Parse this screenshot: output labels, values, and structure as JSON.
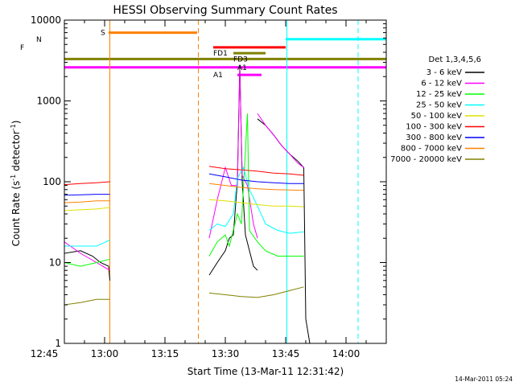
{
  "chart_data": {
    "type": "line",
    "title": "HESSI Observing Summary Count Rates",
    "xlabel": "Start Time (13-Mar-11 12:31:42)",
    "ylabel_main": "Count Rate (s",
    "ylabel_sup1": "-1",
    "ylabel_mid": " detector",
    "ylabel_sup2": "-1",
    "ylabel_end": ")",
    "yscale": "log",
    "ylim": [
      1,
      10000
    ],
    "xlim_minutes": [
      -10,
      70
    ],
    "x_tick_labels": [
      "12:45",
      "13:00",
      "13:15",
      "13:30",
      "13:45",
      "14:00"
    ],
    "x_tick_minutes": [
      -15,
      0,
      15,
      30,
      45,
      60
    ],
    "y_tick_labels": [
      "1",
      "10",
      "100",
      "1000",
      "10000"
    ],
    "y_tick_values": [
      1,
      10,
      100,
      1000,
      10000
    ],
    "timestamp": "14-Mar-2011 05:24",
    "legend": {
      "header": "Det 1,3,4,5,6",
      "position": "right",
      "entries": [
        {
          "label": "3 - 6 keV",
          "color": "#000000"
        },
        {
          "label": "6 - 12 keV",
          "color": "#ff00ff"
        },
        {
          "label": "12 - 25 keV",
          "color": "#00ff00"
        },
        {
          "label": "25 - 50 keV",
          "color": "#00ffff"
        },
        {
          "label": "50 - 100 keV",
          "color": "#e0e000"
        },
        {
          "label": "100 - 300 keV",
          "color": "#ff0000"
        },
        {
          "label": "300 - 800 keV",
          "color": "#0000ff"
        },
        {
          "label": "800 - 7000 keV",
          "color": "#ff8000"
        },
        {
          "label": "7000 - 20000 keV",
          "color": "#808000"
        }
      ]
    },
    "flag_bars": [
      {
        "label": "N",
        "color": "#00ffff",
        "y": 5800,
        "segments": [
          [
            -10,
            -18
          ],
          [
            45,
            70
          ]
        ],
        "label_x": -17
      },
      {
        "label": "S",
        "color": "#ff8000",
        "y": 7000,
        "segments": [
          [
            1,
            23
          ]
        ],
        "label_x": -1
      },
      {
        "label": "F",
        "color": "#ff0000",
        "y": 4600,
        "segments": [
          [
            -18,
            -13
          ],
          [
            27,
            45
          ]
        ],
        "label_x": -21
      },
      {
        "label": "FD1",
        "color": "#808000",
        "y": 3900,
        "segments": [
          [
            32,
            40
          ]
        ],
        "label_x": 27
      },
      {
        "label": "FD3",
        "color": "#808000",
        "y": 3300,
        "segments": [
          [
            -30,
            95
          ]
        ],
        "label_x": 32
      },
      {
        "label": "A1",
        "color": "#ff00ff",
        "y": 2600,
        "segments": [
          [
            -30,
            95
          ]
        ],
        "label_x": 33
      },
      {
        "label": "A1",
        "color": "#ff00ff",
        "y": 2100,
        "segments": [
          [
            33,
            39
          ]
        ],
        "label_x": 27
      }
    ],
    "vlines": [
      {
        "minute": -10.0,
        "color": "#00ffff",
        "style": "solid"
      },
      {
        "minute": -18.0,
        "color": "#00ffff",
        "style": "dashed"
      },
      {
        "minute": 1.3,
        "color": "#ff8000",
        "style": "solid"
      },
      {
        "minute": 23.3,
        "color": "#ff8000",
        "style": "dashed"
      },
      {
        "minute": 45.3,
        "color": "#00ffff",
        "style": "solid"
      },
      {
        "minute": 63.0,
        "color": "#00ffff",
        "style": "dashed"
      }
    ],
    "series": [
      {
        "name": "3 - 6 keV",
        "color": "#000000",
        "segments": [
          [
            [
              -21,
              4
            ],
            [
              -17,
              5
            ],
            [
              -15,
              6
            ],
            [
              -13,
              9
            ],
            [
              -10,
              13
            ],
            [
              -6,
              14
            ],
            [
              -3,
              12
            ],
            [
              -1,
              10
            ],
            [
              1,
              9
            ],
            [
              1.3,
              6
            ]
          ],
          [
            [
              26,
              7
            ],
            [
              28,
              10
            ],
            [
              30,
              14
            ],
            [
              31,
              20
            ],
            [
              32,
              22
            ],
            [
              33,
              100
            ],
            [
              33.6,
              2800
            ],
            [
              34.2,
              100
            ],
            [
              35,
              22
            ],
            [
              36,
              14
            ],
            [
              37,
              9
            ],
            [
              38,
              8
            ]
          ],
          [
            [
              38,
              600
            ],
            [
              40,
              500
            ],
            [
              42,
              380
            ],
            [
              44,
              280
            ],
            [
              46,
              220
            ],
            [
              48,
              180
            ],
            [
              49.5,
              150
            ],
            [
              50,
              2
            ],
            [
              51,
              1
            ]
          ]
        ]
      },
      {
        "name": "6 - 12 keV",
        "color": "#ff00ff",
        "segments": [
          [
            [
              -21,
              5
            ],
            [
              -19,
              9
            ],
            [
              -17,
              20
            ],
            [
              -15,
              120
            ],
            [
              -14,
              45
            ],
            [
              -12,
              28
            ],
            [
              -10,
              18
            ],
            [
              -6,
              13
            ],
            [
              -2,
              10
            ],
            [
              1.3,
              8
            ]
          ],
          [
            [
              26,
              20
            ],
            [
              28,
              60
            ],
            [
              30,
              150
            ],
            [
              31.5,
              90
            ],
            [
              33,
              90
            ],
            [
              33.6,
              2500
            ],
            [
              34.2,
              120
            ],
            [
              35.5,
              90
            ],
            [
              37,
              30
            ],
            [
              38,
              20
            ]
          ],
          [
            [
              38,
              700
            ],
            [
              40,
              500
            ],
            [
              42,
              380
            ],
            [
              44,
              280
            ],
            [
              46,
              220
            ],
            [
              48,
              170
            ],
            [
              49.5,
              150
            ]
          ]
        ]
      },
      {
        "name": "12 - 25 keV",
        "color": "#00ff00",
        "segments": [
          [
            [
              -21,
              9
            ],
            [
              -17,
              10
            ],
            [
              -14,
              12
            ],
            [
              -11,
              10
            ],
            [
              -6,
              9
            ],
            [
              -2,
              10
            ],
            [
              1.3,
              11
            ]
          ],
          [
            [
              26,
              12
            ],
            [
              28,
              18
            ],
            [
              30,
              22
            ],
            [
              31,
              16
            ],
            [
              33,
              40
            ],
            [
              34,
              30
            ],
            [
              35.5,
              700
            ],
            [
              36,
              25
            ],
            [
              38,
              18
            ],
            [
              40,
              14
            ],
            [
              43,
              12
            ],
            [
              46,
              12
            ],
            [
              49.5,
              12
            ]
          ]
        ]
      },
      {
        "name": "25 - 50 keV",
        "color": "#00ffff",
        "segments": [
          [
            [
              -21,
              13
            ],
            [
              -17,
              14
            ],
            [
              -14,
              15
            ],
            [
              -10,
              16
            ],
            [
              -6,
              16
            ],
            [
              -2,
              16
            ],
            [
              1.3,
              19
            ]
          ],
          [
            [
              26,
              25
            ],
            [
              28,
              30
            ],
            [
              30,
              28
            ],
            [
              32,
              40
            ],
            [
              33,
              110
            ],
            [
              34.5,
              150
            ],
            [
              36,
              80
            ],
            [
              38,
              50
            ],
            [
              40,
              30
            ],
            [
              43,
              25
            ],
            [
              46,
              23
            ],
            [
              49.5,
              24
            ]
          ]
        ]
      },
      {
        "name": "50 - 100 keV",
        "color": "#e0e000",
        "segments": [
          [
            [
              -21,
              40
            ],
            [
              -17,
              42
            ],
            [
              -14,
              43
            ],
            [
              -10,
              44
            ],
            [
              -6,
              45
            ],
            [
              -2,
              46
            ],
            [
              1.3,
              48
            ]
          ],
          [
            [
              26,
              60
            ],
            [
              30,
              58
            ],
            [
              34,
              55
            ],
            [
              38,
              52
            ],
            [
              42,
              50
            ],
            [
              46,
              50
            ],
            [
              49.5,
              49
            ]
          ]
        ]
      },
      {
        "name": "100 - 300 keV",
        "color": "#ff0000",
        "segments": [
          [
            [
              -21,
              85
            ],
            [
              -17,
              88
            ],
            [
              -14,
              90
            ],
            [
              -10,
              92
            ],
            [
              -6,
              95
            ],
            [
              -2,
              97
            ],
            [
              1.3,
              100
            ]
          ],
          [
            [
              26,
              155
            ],
            [
              30,
              145
            ],
            [
              34,
              140
            ],
            [
              38,
              135
            ],
            [
              42,
              128
            ],
            [
              46,
              125
            ],
            [
              49.5,
              120
            ]
          ]
        ]
      },
      {
        "name": "300 - 800 keV",
        "color": "#0000ff",
        "segments": [
          [
            [
              -21,
              65
            ],
            [
              -17,
              66
            ],
            [
              -14,
              67
            ],
            [
              -10,
              68
            ],
            [
              -6,
              69
            ],
            [
              -2,
              70
            ],
            [
              1.3,
              70
            ]
          ],
          [
            [
              26,
              125
            ],
            [
              30,
              115
            ],
            [
              34,
              105
            ],
            [
              38,
              100
            ],
            [
              42,
              97
            ],
            [
              46,
              95
            ],
            [
              49.5,
              95
            ]
          ]
        ]
      },
      {
        "name": "800 - 7000 keV",
        "color": "#ff8000",
        "segments": [
          [
            [
              -21,
              50
            ],
            [
              -17,
              52
            ],
            [
              -14,
              54
            ],
            [
              -10,
              55
            ],
            [
              -6,
              56
            ],
            [
              -2,
              58
            ],
            [
              1.3,
              58
            ]
          ],
          [
            [
              26,
              95
            ],
            [
              30,
              90
            ],
            [
              34,
              85
            ],
            [
              38,
              82
            ],
            [
              42,
              80
            ],
            [
              46,
              79
            ],
            [
              49.5,
              78
            ]
          ]
        ]
      },
      {
        "name": "7000 - 20000 keV",
        "color": "#808000",
        "segments": [
          [
            [
              -21,
              2.5
            ],
            [
              -17,
              2.5
            ],
            [
              -14,
              2.8
            ],
            [
              -10,
              3
            ],
            [
              -6,
              3.2
            ],
            [
              -2,
              3.5
            ],
            [
              1.3,
              3.5
            ]
          ],
          [
            [
              26,
              4.2
            ],
            [
              30,
              4.0
            ],
            [
              34,
              3.8
            ],
            [
              38,
              3.7
            ],
            [
              42,
              4.0
            ],
            [
              46,
              4.5
            ],
            [
              49.5,
              5.0
            ]
          ]
        ]
      }
    ]
  }
}
